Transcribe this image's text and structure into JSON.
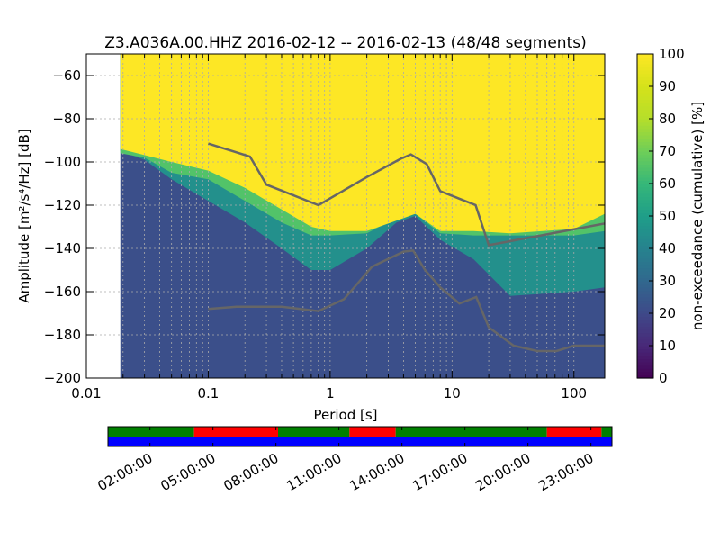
{
  "chart_data": {
    "type": "heatmap",
    "title": "Z3.A036A.00.HHZ   2016-02-12 -- 2016-02-13  (48/48 segments)",
    "xlabel": "Period [s]",
    "ylabel": "Amplitude [m²/s⁴/Hz] [dB]",
    "x_scale": "log",
    "xlim": [
      0.01,
      179
    ],
    "ylim": [
      -200,
      -50
    ],
    "x_ticks": [
      0.01,
      0.1,
      1,
      10,
      100
    ],
    "x_tick_labels": [
      "0.01",
      "0.1",
      "1",
      "10",
      "100"
    ],
    "y_ticks": [
      -200,
      -180,
      -160,
      -140,
      -120,
      -100,
      -80,
      -60
    ],
    "y_tick_labels": [
      "−200",
      "−180",
      "−160",
      "−140",
      "−120",
      "−100",
      "−80",
      "−60"
    ],
    "grid": true,
    "period_min": 0.019,
    "colorbar": {
      "label": "non-exceedance (cumulative) [%]",
      "range": [
        0,
        100
      ],
      "ticks": [
        0,
        10,
        20,
        30,
        40,
        50,
        60,
        70,
        80,
        90,
        100
      ],
      "tick_labels": [
        "0",
        "10",
        "20",
        "30",
        "40",
        "50",
        "60",
        "70",
        "80",
        "90",
        "100"
      ],
      "colormap": "viridis"
    },
    "boundaries": [
      {
        "level": 30,
        "points": [
          [
            0.019,
            -95
          ],
          [
            0.03,
            -99
          ],
          [
            0.05,
            -108
          ],
          [
            0.1,
            -118
          ],
          [
            0.2,
            -128
          ],
          [
            0.4,
            -140
          ],
          [
            0.7,
            -150
          ],
          [
            1,
            -150
          ],
          [
            2,
            -140
          ],
          [
            3.5,
            -128
          ],
          [
            5,
            -125
          ],
          [
            8,
            -136
          ],
          [
            15,
            -145
          ],
          [
            30,
            -162
          ],
          [
            100,
            -160
          ],
          [
            179,
            -158
          ]
        ]
      },
      {
        "level": 70,
        "points": [
          [
            0.019,
            -96
          ],
          [
            0.03,
            -98
          ],
          [
            0.05,
            -105
          ],
          [
            0.1,
            -108
          ],
          [
            0.2,
            -118
          ],
          [
            0.4,
            -128
          ],
          [
            0.7,
            -134
          ],
          [
            1,
            -134
          ],
          [
            2,
            -133
          ],
          [
            3.5,
            -126
          ],
          [
            5,
            -124
          ],
          [
            8,
            -133
          ],
          [
            15,
            -134
          ],
          [
            30,
            -134
          ],
          [
            100,
            -134
          ],
          [
            179,
            -132
          ]
        ]
      },
      {
        "level": 95,
        "points": [
          [
            0.019,
            -94
          ],
          [
            0.05,
            -100
          ],
          [
            0.1,
            -104
          ],
          [
            0.2,
            -112
          ],
          [
            0.4,
            -122
          ],
          [
            0.7,
            -130
          ],
          [
            1,
            -132
          ],
          [
            2,
            -132
          ],
          [
            4,
            -126
          ],
          [
            5,
            -124
          ],
          [
            8,
            -132
          ],
          [
            15,
            -132
          ],
          [
            30,
            -133
          ],
          [
            100,
            -131
          ],
          [
            179,
            -124
          ]
        ]
      }
    ],
    "series": [
      {
        "x": [
          0.1,
          0.22,
          0.3,
          0.8,
          2,
          3.8,
          4.6,
          6.2,
          8,
          15.6,
          20,
          179
        ],
        "y": [
          -91.5,
          -97.5,
          -110.5,
          -120,
          -107,
          -98.5,
          -96.5,
          -101,
          -113.5,
          -120,
          -138.5,
          -128.5
        ]
      },
      {
        "x": [
          0.1,
          0.17,
          0.4,
          0.8,
          1.3,
          2.2,
          4,
          4.8,
          6,
          8,
          11.5,
          15.8,
          20,
          32,
          50,
          72,
          100,
          179
        ],
        "y": [
          -168,
          -167,
          -167,
          -169,
          -163.5,
          -148.5,
          -141.5,
          -141,
          -150,
          -158,
          -165.5,
          -162.5,
          -176.5,
          -185,
          -187.5,
          -187.5,
          -185,
          -185
        ]
      }
    ],
    "timeline": {
      "tick_labels": [
        "02:00:00",
        "05:00:00",
        "08:00:00",
        "11:00:00",
        "14:00:00",
        "17:00:00",
        "20:00:00",
        "23:00:00"
      ],
      "tick_hours": [
        2,
        5,
        8,
        11,
        14,
        17,
        20,
        23
      ],
      "start_hour": 0,
      "end_hour": 24,
      "top_colors": {
        "ok": "#008000",
        "gap": "#ff0000"
      },
      "bottom_color": "#0000ff",
      "segments": [
        {
          "start": 0,
          "end": 4.1,
          "state": "ok"
        },
        {
          "start": 4.1,
          "end": 4.9,
          "state": "gap"
        },
        {
          "start": 4.9,
          "end": 8.1,
          "state": "gap"
        },
        {
          "start": 8.1,
          "end": 11.5,
          "state": "ok"
        },
        {
          "start": 11.5,
          "end": 13.7,
          "state": "gap"
        },
        {
          "start": 13.7,
          "end": 20.9,
          "state": "ok"
        },
        {
          "start": 20.9,
          "end": 22.2,
          "state": "gap"
        },
        {
          "start": 22.2,
          "end": 23.1,
          "state": "gap"
        },
        {
          "start": 23.1,
          "end": 23.5,
          "state": "gap"
        },
        {
          "start": 23.5,
          "end": 24,
          "state": "ok"
        }
      ]
    }
  }
}
